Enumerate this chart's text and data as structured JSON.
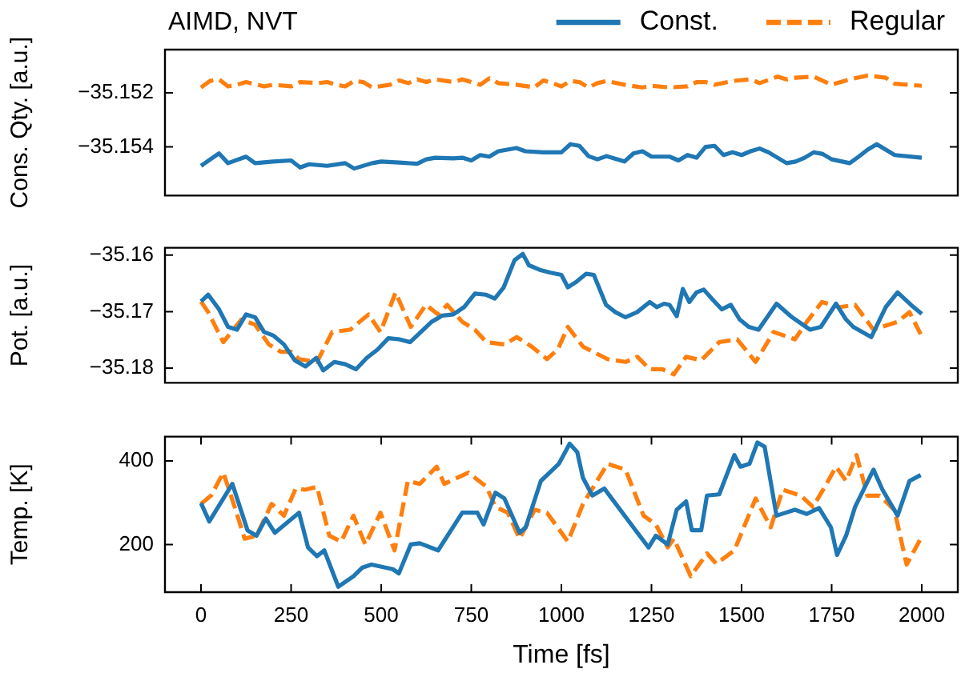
{
  "chart_data": [
    {
      "type": "line",
      "title": "AIMD, NVT",
      "ylabel": "Cons. Qty. [a.u.]",
      "xlim": [
        -100,
        2100
      ],
      "ylim": [
        -35.1558,
        -35.1504
      ],
      "yticks": [
        {
          "value": -35.152,
          "label": "−35.152"
        },
        {
          "value": -35.154,
          "label": "−35.154"
        }
      ],
      "tick_labels": "y",
      "legend": "top right",
      "marker": "none",
      "grid": false,
      "series": [
        {
          "name": "Const.",
          "color": "#1f77b4",
          "line_style": "solid",
          "x": [
            0,
            50,
            75,
            125,
            150,
            200,
            250,
            275,
            300,
            350,
            400,
            425,
            475,
            500,
            550,
            600,
            625,
            650,
            700,
            725,
            750,
            775,
            800,
            825,
            875,
            900,
            950,
            1000,
            1025,
            1050,
            1075,
            1100,
            1125,
            1175,
            1200,
            1225,
            1250,
            1300,
            1325,
            1350,
            1375,
            1400,
            1425,
            1450,
            1475,
            1500,
            1525,
            1550,
            1575,
            1625,
            1650,
            1675,
            1700,
            1725,
            1750,
            1800,
            1825,
            1850,
            1875,
            1925,
            2000
          ],
          "values": [
            -35.1547,
            -35.15424,
            -35.1546,
            -35.15436,
            -35.1546,
            -35.15454,
            -35.1545,
            -35.15476,
            -35.15464,
            -35.1547,
            -35.1546,
            -35.1548,
            -35.1546,
            -35.15454,
            -35.15458,
            -35.15462,
            -35.15446,
            -35.1544,
            -35.15442,
            -35.1544,
            -35.1545,
            -35.1543,
            -35.15436,
            -35.15416,
            -35.15404,
            -35.15416,
            -35.1542,
            -35.1542,
            -35.1539,
            -35.15396,
            -35.15434,
            -35.15446,
            -35.15434,
            -35.15454,
            -35.15424,
            -35.15416,
            -35.15436,
            -35.15436,
            -35.1545,
            -35.1543,
            -35.1544,
            -35.154,
            -35.15396,
            -35.1543,
            -35.1542,
            -35.1543,
            -35.15416,
            -35.15406,
            -35.1542,
            -35.1546,
            -35.15454,
            -35.1544,
            -35.1542,
            -35.15426,
            -35.15446,
            -35.1546,
            -35.15436,
            -35.1541,
            -35.1539,
            -35.1543,
            -35.1544
          ]
        },
        {
          "name": "Regular",
          "color": "#ff7f0e",
          "line_style": "dashed",
          "x": [
            0,
            25,
            50,
            75,
            100,
            125,
            175,
            200,
            250,
            275,
            325,
            350,
            375,
            400,
            425,
            450,
            475,
            525,
            550,
            575,
            600,
            625,
            650,
            700,
            725,
            750,
            775,
            800,
            825,
            875,
            925,
            950,
            975,
            1000,
            1025,
            1050,
            1075,
            1100,
            1125,
            1175,
            1225,
            1250,
            1300,
            1350,
            1375,
            1400,
            1425,
            1475,
            1525,
            1550,
            1600,
            1625,
            1650,
            1700,
            1750,
            1800,
            1850,
            1900,
            1925,
            2000
          ],
          "values": [
            -35.1518,
            -35.15156,
            -35.1515,
            -35.15176,
            -35.1517,
            -35.1516,
            -35.15176,
            -35.1517,
            -35.15176,
            -35.1516,
            -35.15164,
            -35.1516,
            -35.1517,
            -35.15176,
            -35.15156,
            -35.1516,
            -35.1518,
            -35.1517,
            -35.15154,
            -35.15164,
            -35.1515,
            -35.1516,
            -35.1515,
            -35.1516,
            -35.1515,
            -35.1516,
            -35.1517,
            -35.15146,
            -35.15164,
            -35.1517,
            -35.1518,
            -35.15154,
            -35.15164,
            -35.15176,
            -35.15156,
            -35.1516,
            -35.1518,
            -35.15164,
            -35.15156,
            -35.1517,
            -35.1518,
            -35.15174,
            -35.1518,
            -35.15176,
            -35.1516,
            -35.1516,
            -35.1517,
            -35.15156,
            -35.1515,
            -35.15164,
            -35.1514,
            -35.1515,
            -35.15144,
            -35.1514,
            -35.1517,
            -35.1515,
            -35.15136,
            -35.15144,
            -35.15166,
            -35.15174
          ]
        }
      ]
    },
    {
      "type": "line",
      "ylabel": "Pot. [a.u.]",
      "xlim": [
        -100,
        2100
      ],
      "ylim": [
        -35.1826,
        -35.1587
      ],
      "yticks": [
        {
          "value": -35.16,
          "label": "−35.16"
        },
        {
          "value": -35.17,
          "label": "−35.17"
        },
        {
          "value": -35.18,
          "label": "−35.18"
        }
      ],
      "tick_labels": "y",
      "marker": "none",
      "grid": false,
      "series": [
        {
          "color": "#1f77b4",
          "line_style": "solid",
          "x": [
            0,
            20,
            50,
            75,
            100,
            125,
            150,
            175,
            200,
            230,
            260,
            290,
            320,
            339,
            370,
            400,
            430,
            460,
            490,
            520,
            550,
            580,
            610,
            640,
            670,
            700,
            730,
            760,
            790,
            815,
            840,
            870,
            893,
            910,
            940,
            970,
            1000,
            1018,
            1040,
            1069,
            1090,
            1124,
            1150,
            1178,
            1210,
            1245,
            1265,
            1285,
            1300,
            1320,
            1337,
            1355,
            1375,
            1395,
            1420,
            1445,
            1470,
            1495,
            1520,
            1547,
            1597,
            1640,
            1690,
            1720,
            1762,
            1790,
            1810,
            1860,
            1900,
            1933,
            1970,
            2000
          ],
          "values": [
            -35.1682,
            -35.167,
            -35.1696,
            -35.1727,
            -35.1732,
            -35.1705,
            -35.171,
            -35.1736,
            -35.1742,
            -35.1758,
            -35.1786,
            -35.1797,
            -35.1782,
            -35.1804,
            -35.1789,
            -35.1793,
            -35.1802,
            -35.1782,
            -35.1767,
            -35.1747,
            -35.1749,
            -35.1754,
            -35.1736,
            -35.1718,
            -35.1707,
            -35.1705,
            -35.1692,
            -35.1668,
            -35.167,
            -35.1677,
            -35.1657,
            -35.1609,
            -35.1598,
            -35.1618,
            -35.1626,
            -35.1631,
            -35.1635,
            -35.1657,
            -35.1648,
            -35.1633,
            -35.1635,
            -35.1688,
            -35.1701,
            -35.171,
            -35.1701,
            -35.1683,
            -35.1692,
            -35.1686,
            -35.1688,
            -35.1708,
            -35.166,
            -35.1683,
            -35.1666,
            -35.1661,
            -35.1679,
            -35.1696,
            -35.1688,
            -35.1714,
            -35.1727,
            -35.1732,
            -35.1686,
            -35.171,
            -35.1732,
            -35.1727,
            -35.1686,
            -35.1714,
            -35.1727,
            -35.1745,
            -35.1692,
            -35.1666,
            -35.1688,
            -35.1704
          ]
        },
        {
          "color": "#ff7f0e",
          "line_style": "dashed",
          "x": [
            0,
            20,
            62,
            112,
            150,
            188,
            221,
            250,
            272,
            322,
            364,
            414,
            440,
            465,
            498,
            540,
            582,
            624,
            658,
            683,
            725,
            760,
            792,
            842,
            876,
            918,
            960,
            990,
            1018,
            1060,
            1128,
            1178,
            1211,
            1245,
            1280,
            1312,
            1346,
            1388,
            1438,
            1488,
            1539,
            1589,
            1648,
            1681,
            1723,
            1773,
            1815,
            1866,
            1933,
            1966,
            1997
          ],
          "values": [
            -35.1682,
            -35.1701,
            -35.1754,
            -35.1714,
            -35.1723,
            -35.1758,
            -35.1771,
            -35.1771,
            -35.1784,
            -35.1789,
            -35.1736,
            -35.1732,
            -35.1718,
            -35.1705,
            -35.1736,
            -35.1666,
            -35.1727,
            -35.1688,
            -35.1705,
            -35.1688,
            -35.1718,
            -35.1732,
            -35.1754,
            -35.1758,
            -35.1745,
            -35.1762,
            -35.1784,
            -35.1767,
            -35.1727,
            -35.1762,
            -35.1784,
            -35.1789,
            -35.178,
            -35.1802,
            -35.1802,
            -35.1811,
            -35.178,
            -35.1786,
            -35.1754,
            -35.1749,
            -35.1789,
            -35.1736,
            -35.1749,
            -35.1718,
            -35.1683,
            -35.1692,
            -35.1688,
            -35.1732,
            -35.1718,
            -35.1701,
            -35.174
          ]
        }
      ]
    },
    {
      "type": "line",
      "xlabel": "Time [fs]",
      "ylabel": "Temp. [K]",
      "xlim": [
        -100,
        2100
      ],
      "ylim": [
        86,
        458
      ],
      "xticks": [
        0,
        250,
        500,
        750,
        1000,
        1250,
        1500,
        1750,
        2000
      ],
      "yticks": [
        200,
        400
      ],
      "marker": "none",
      "grid": false,
      "series": [
        {
          "color": "#1f77b4",
          "line_style": "solid",
          "x": [
            0,
            23,
            87,
            129,
            154,
            180,
            205,
            272,
            297,
            322,
            342,
            381,
            423,
            448,
            473,
            532,
            549,
            582,
            607,
            658,
            725,
            767,
            784,
            817,
            842,
            884,
            901,
            943,
            993,
            1023,
            1044,
            1060,
            1086,
            1119,
            1211,
            1242,
            1262,
            1295,
            1320,
            1346,
            1362,
            1388,
            1404,
            1438,
            1480,
            1497,
            1522,
            1544,
            1564,
            1597,
            1648,
            1681,
            1715,
            1748,
            1765,
            1790,
            1815,
            1866,
            1891,
            1933,
            1966,
            1997
          ],
          "values": [
            299,
            255,
            345,
            234,
            221,
            262,
            228,
            276,
            193,
            172,
            186,
            99,
            124,
            145,
            152,
            141,
            131,
            200,
            203,
            186,
            276,
            276,
            248,
            324,
            310,
            228,
            241,
            352,
            393,
            441,
            421,
            359,
            317,
            334,
            228,
            193,
            221,
            200,
            283,
            303,
            234,
            234,
            317,
            320,
            414,
            386,
            393,
            444,
            434,
            269,
            283,
            273,
            287,
            241,
            175,
            221,
            290,
            379,
            331,
            269,
            352,
            366
          ]
        },
        {
          "color": "#ff7f0e",
          "line_style": "dashed",
          "x": [
            0,
            28,
            62,
            96,
            121,
            154,
            196,
            230,
            263,
            289,
            322,
            356,
            389,
            423,
            456,
            498,
            537,
            574,
            607,
            654,
            675,
            742,
            792,
            817,
            851,
            884,
            926,
            960,
            1018,
            1060,
            1128,
            1178,
            1228,
            1262,
            1295,
            1312,
            1359,
            1404,
            1430,
            1480,
            1539,
            1581,
            1614,
            1664,
            1698,
            1731,
            1762,
            1790,
            1819,
            1849,
            1883,
            1924,
            1958,
            1997
          ],
          "values": [
            297,
            317,
            372,
            283,
            214,
            221,
            297,
            269,
            334,
            331,
            338,
            221,
            207,
            269,
            200,
            276,
            186,
            352,
            345,
            386,
            345,
            372,
            338,
            290,
            276,
            214,
            283,
            276,
            207,
            297,
            393,
            379,
            269,
            248,
            193,
            214,
            124,
            179,
            154,
            186,
            310,
            241,
            331,
            317,
            290,
            338,
            386,
            352,
            414,
            317,
            317,
            283,
            152,
            214
          ]
        }
      ]
    }
  ]
}
